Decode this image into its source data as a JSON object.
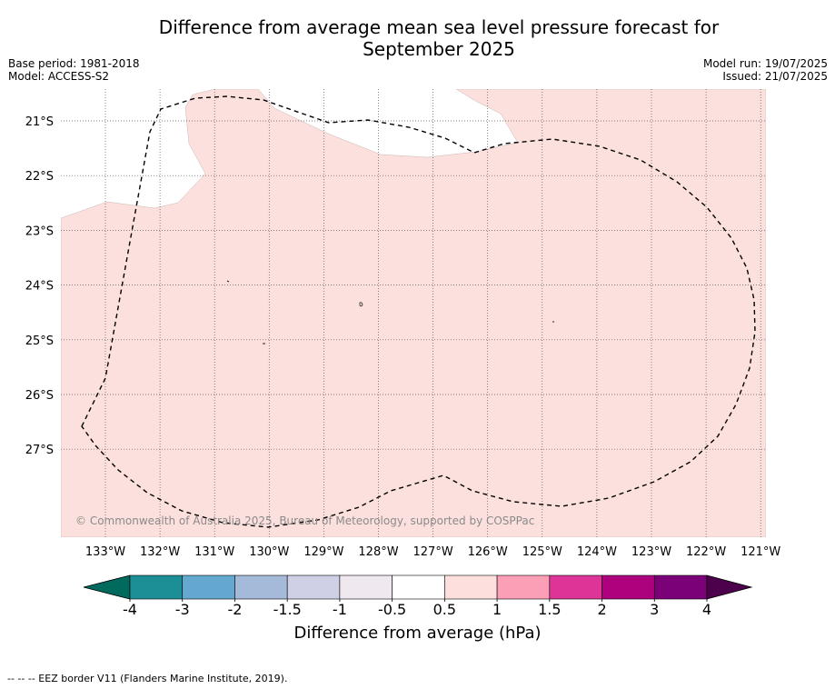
{
  "title": {
    "line1": "Difference from average mean sea level pressure forecast for",
    "line2": "September 2025"
  },
  "meta": {
    "base_period": "Base period: 1981-2018",
    "model": "Model: ACCESS-S2",
    "model_run": "Model run: 19/07/2025",
    "issued": "Issued: 21/07/2025"
  },
  "map": {
    "fill_color": "#fce0dd",
    "lat_labels": [
      "21°S",
      "22°S",
      "23°S",
      "24°S",
      "25°S",
      "26°S",
      "27°S"
    ],
    "lon_labels": [
      "133°W",
      "132°W",
      "131°W",
      "130°W",
      "129°W",
      "128°W",
      "127°W",
      "126°W",
      "125°W",
      "124°W",
      "123°W",
      "122°W",
      "121°W"
    ],
    "copyright": "© Commonwealth of Australia 2025, Bureau of Meteorology, supported by COSPPac"
  },
  "colorbar": {
    "label": "Difference from average (hPa)",
    "ticks": [
      "-4",
      "-3",
      "-2",
      "-1.5",
      "-1",
      "-0.5",
      "0.5",
      "1",
      "1.5",
      "2",
      "3",
      "4"
    ],
    "colors": [
      "#1b8e96",
      "#64a8d0",
      "#a5b9d9",
      "#cfd0e6",
      "#efe8ef",
      "#ffffff",
      "#fde0dd",
      "#fa9fb5",
      "#dd3497",
      "#ae017e",
      "#7a0177"
    ],
    "under_color": "#006a5e",
    "over_color": "#4d004b"
  },
  "footer": "-- -- -- EEZ border V11 (Flanders Marine Institute, 2019)."
}
